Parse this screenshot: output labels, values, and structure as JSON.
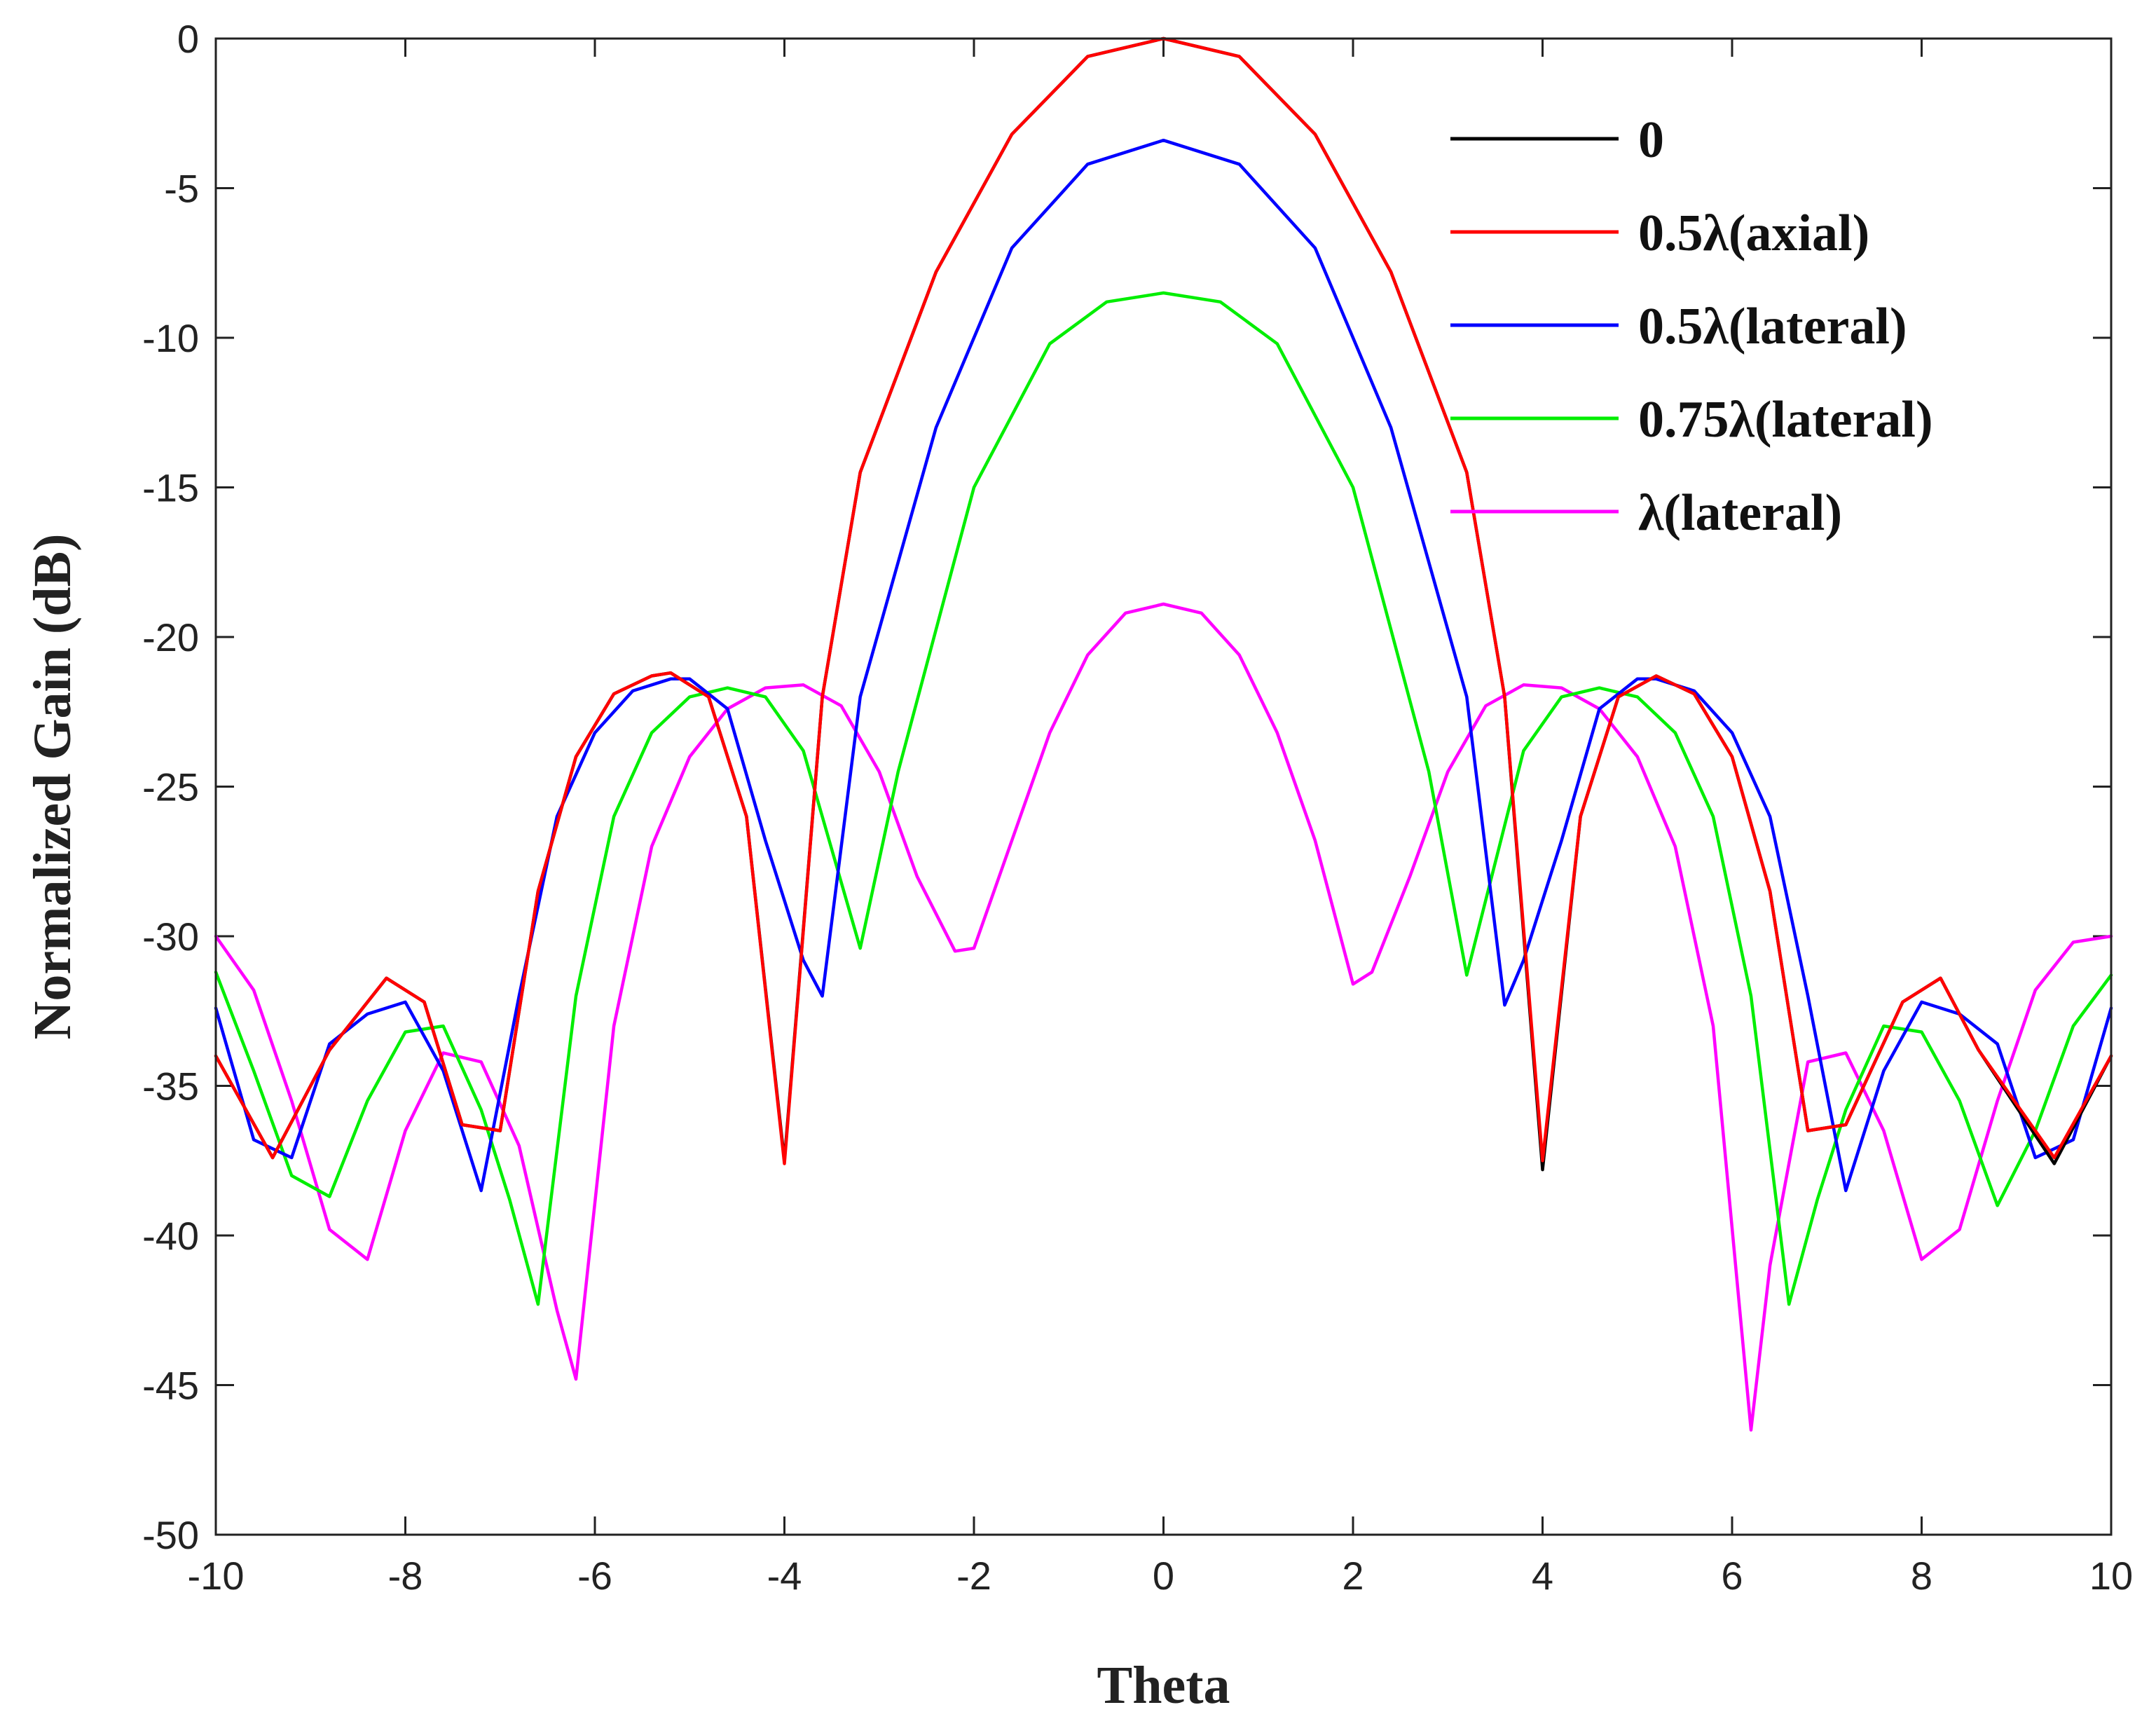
{
  "chart_data": {
    "type": "line",
    "title": "",
    "xlabel": "Theta",
    "ylabel": "Normalized Gain (dB)",
    "xlim": [
      -10,
      10
    ],
    "ylim": [
      -50,
      0
    ],
    "xticks": [
      "-10",
      "-8",
      "-6",
      "-4",
      "-2",
      "0",
      "2",
      "4",
      "6",
      "8",
      "10"
    ],
    "yticks": [
      "0",
      "-5",
      "-10",
      "-15",
      "-20",
      "-25",
      "-30",
      "-35",
      "-40",
      "-45",
      "-50"
    ],
    "legend_position": "top-right",
    "series": [
      {
        "name": "0",
        "color": "#000000",
        "x": [
          -10,
          -9.4,
          -8.8,
          -8.2,
          -7.8,
          -7.4,
          -7.0,
          -6.6,
          -6.2,
          -5.8,
          -5.4,
          -5.2,
          -4.8,
          -4.4,
          -4.0,
          -3.6,
          -3.2,
          -2.4,
          -1.6,
          -0.8,
          0,
          0.8,
          1.6,
          2.4,
          3.2,
          3.6,
          4.0,
          4.4,
          4.8,
          5.2,
          5.6,
          6.0,
          6.4,
          6.8,
          7.2,
          7.8,
          8.2,
          8.6,
          9.4,
          10
        ],
        "y": [
          -34,
          -37.4,
          -33.8,
          -31.4,
          -32.2,
          -36.3,
          -36.5,
          -28.5,
          -24.0,
          -21.9,
          -21.3,
          -21.2,
          -22.0,
          -26.0,
          -37.5,
          -22.0,
          -14.5,
          -7.8,
          -3.2,
          -0.6,
          0,
          -0.6,
          -3.2,
          -7.8,
          -14.5,
          -22.0,
          -37.8,
          -26.0,
          -22.0,
          -21.3,
          -21.9,
          -24.0,
          -28.5,
          -36.5,
          -36.3,
          -32.2,
          -31.4,
          -33.8,
          -37.6,
          -34
        ]
      },
      {
        "name": "0.5λ(axial)",
        "color": "#ff0000",
        "x": [
          -10,
          -9.4,
          -8.8,
          -8.2,
          -7.8,
          -7.4,
          -7.0,
          -6.6,
          -6.2,
          -5.8,
          -5.4,
          -5.2,
          -4.8,
          -4.4,
          -4.0,
          -3.6,
          -3.2,
          -2.4,
          -1.6,
          -0.8,
          0,
          0.8,
          1.6,
          2.4,
          3.2,
          3.6,
          4.0,
          4.4,
          4.8,
          5.2,
          5.6,
          6.0,
          6.4,
          6.8,
          7.2,
          7.8,
          8.2,
          8.6,
          9.4,
          10
        ],
        "y": [
          -34,
          -37.4,
          -33.8,
          -31.4,
          -32.2,
          -36.3,
          -36.5,
          -28.5,
          -24.0,
          -21.9,
          -21.3,
          -21.2,
          -22.0,
          -26.0,
          -37.6,
          -22.0,
          -14.5,
          -7.8,
          -3.2,
          -0.6,
          0,
          -0.6,
          -3.2,
          -7.8,
          -14.5,
          -22.0,
          -37.5,
          -26.0,
          -22.0,
          -21.3,
          -21.9,
          -24.0,
          -28.5,
          -36.5,
          -36.3,
          -32.2,
          -31.4,
          -33.8,
          -37.4,
          -34
        ]
      },
      {
        "name": "0.5λ(lateral)",
        "color": "#0000ff",
        "x": [
          -10,
          -9.6,
          -9.2,
          -8.8,
          -8.4,
          -8.0,
          -7.6,
          -7.2,
          -6.8,
          -6.4,
          -6.0,
          -5.6,
          -5.2,
          -5.0,
          -4.6,
          -4.2,
          -3.8,
          -3.6,
          -3.2,
          -2.4,
          -1.6,
          -0.8,
          0,
          0.8,
          1.6,
          2.4,
          3.2,
          3.6,
          3.8,
          4.2,
          4.6,
          5.0,
          5.2,
          5.6,
          6.0,
          6.4,
          6.8,
          7.2,
          7.6,
          8.0,
          8.4,
          8.8,
          9.2,
          9.6,
          10
        ],
        "y": [
          -32.4,
          -36.8,
          -37.4,
          -33.6,
          -32.6,
          -32.2,
          -34.5,
          -38.5,
          -32.0,
          -26.0,
          -23.2,
          -21.8,
          -21.4,
          -21.4,
          -22.4,
          -26.8,
          -30.8,
          -32.0,
          -22.0,
          -13.0,
          -7.0,
          -4.2,
          -3.4,
          -4.2,
          -7.0,
          -13.0,
          -22.0,
          -32.3,
          -30.8,
          -26.8,
          -22.4,
          -21.4,
          -21.4,
          -21.8,
          -23.2,
          -26.0,
          -32.0,
          -38.5,
          -34.5,
          -32.2,
          -32.6,
          -33.6,
          -37.4,
          -36.8,
          -32.4
        ]
      },
      {
        "name": "0.75λ(lateral)",
        "color": "#00ee00",
        "x": [
          -10,
          -9.6,
          -9.2,
          -8.8,
          -8.4,
          -8.0,
          -7.6,
          -7.2,
          -6.9,
          -6.6,
          -6.2,
          -5.8,
          -5.4,
          -5.0,
          -4.6,
          -4.2,
          -3.8,
          -3.2,
          -2.8,
          -2.0,
          -1.2,
          -0.6,
          0,
          0.6,
          1.2,
          2.0,
          2.8,
          3.2,
          3.8,
          4.2,
          4.6,
          5.0,
          5.4,
          5.8,
          6.2,
          6.6,
          6.9,
          7.2,
          7.6,
          8.0,
          8.4,
          8.8,
          9.2,
          9.6,
          10
        ],
        "y": [
          -31.2,
          -34.5,
          -38.0,
          -38.7,
          -35.5,
          -33.2,
          -33.0,
          -35.8,
          -38.8,
          -42.3,
          -32.0,
          -26.0,
          -23.2,
          -22.0,
          -21.7,
          -22.0,
          -23.8,
          -30.4,
          -24.5,
          -15.0,
          -10.2,
          -8.8,
          -8.5,
          -8.8,
          -10.2,
          -15.0,
          -24.5,
          -31.3,
          -23.8,
          -22.0,
          -21.7,
          -22.0,
          -23.2,
          -26.0,
          -32.0,
          -42.3,
          -38.8,
          -35.8,
          -33.0,
          -33.2,
          -35.5,
          -39.0,
          -36.5,
          -33.0,
          -31.3
        ]
      },
      {
        "name": "λ(lateral)",
        "color": "#ff00ff",
        "x": [
          -10,
          -9.6,
          -9.2,
          -8.8,
          -8.4,
          -8.0,
          -7.6,
          -7.2,
          -6.8,
          -6.4,
          -6.2,
          -5.8,
          -5.4,
          -5.0,
          -4.6,
          -4.2,
          -3.8,
          -3.4,
          -3.0,
          -2.6,
          -2.2,
          -2.0,
          -1.6,
          -1.2,
          -0.8,
          -0.4,
          0,
          0.4,
          0.8,
          1.2,
          1.6,
          2.0,
          2.2,
          2.6,
          3.0,
          3.4,
          3.8,
          4.2,
          4.6,
          5.0,
          5.4,
          5.8,
          6.2,
          6.4,
          6.8,
          7.2,
          7.6,
          8.0,
          8.4,
          8.8,
          9.2,
          9.6,
          10
        ],
        "y": [
          -30.0,
          -31.8,
          -35.5,
          -39.8,
          -40.8,
          -36.5,
          -33.9,
          -34.2,
          -37.0,
          -42.5,
          -44.8,
          -33.0,
          -27.0,
          -24.0,
          -22.4,
          -21.7,
          -21.6,
          -22.3,
          -24.5,
          -28.0,
          -30.5,
          -30.4,
          -26.8,
          -23.2,
          -20.6,
          -19.2,
          -18.9,
          -19.2,
          -20.6,
          -23.2,
          -26.8,
          -31.6,
          -31.2,
          -28.0,
          -24.5,
          -22.3,
          -21.6,
          -21.7,
          -22.4,
          -24.0,
          -27.0,
          -33.0,
          -46.5,
          -41.0,
          -34.2,
          -33.9,
          -36.5,
          -40.8,
          -39.8,
          -35.5,
          -31.8,
          -30.2,
          -30.0
        ]
      }
    ]
  }
}
